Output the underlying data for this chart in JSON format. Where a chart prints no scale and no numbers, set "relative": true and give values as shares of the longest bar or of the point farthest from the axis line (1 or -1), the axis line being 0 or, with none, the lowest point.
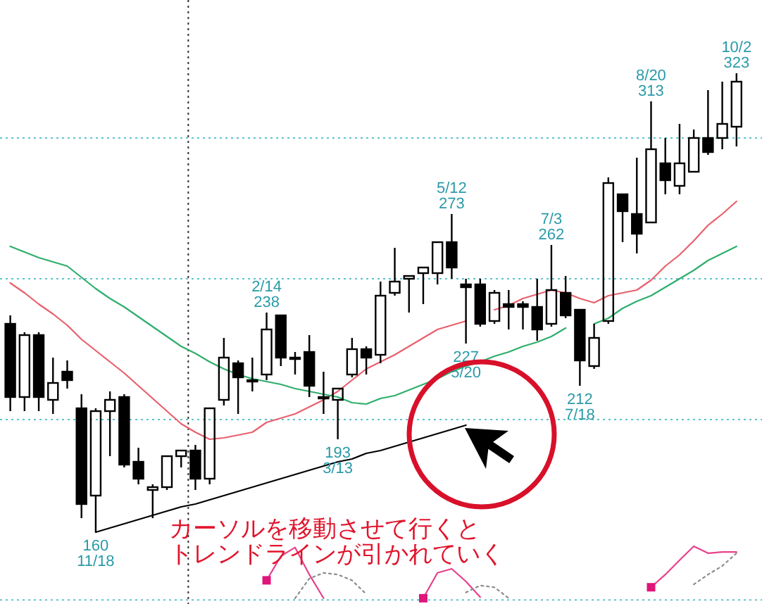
{
  "chart_data": [
    {
      "type": "candlestick",
      "categories": [
        null,
        null,
        null,
        null,
        null,
        null,
        null,
        null,
        null,
        null,
        null,
        null,
        null,
        null,
        null,
        null,
        null,
        null,
        null,
        null,
        null,
        null,
        null,
        null,
        null,
        null,
        null,
        null,
        null,
        null,
        null,
        null,
        null,
        null,
        null,
        null,
        null,
        null,
        null,
        null,
        null,
        null,
        null,
        null,
        null,
        null,
        null,
        null,
        null,
        null,
        null,
        null
      ],
      "ohlc": [
        [
          234,
          237,
          203,
          208
        ],
        [
          208,
          231,
          203,
          230
        ],
        [
          230,
          231,
          203,
          208
        ],
        [
          207,
          222,
          202,
          213
        ],
        [
          217,
          221,
          211,
          214
        ],
        [
          204,
          209,
          165,
          170
        ],
        [
          173,
          204,
          160,
          203
        ],
        [
          203,
          210,
          187,
          207
        ],
        [
          208,
          209,
          183,
          184
        ],
        [
          185,
          190,
          177,
          179
        ],
        [
          175,
          177,
          165,
          176
        ],
        [
          176,
          187,
          175,
          187
        ],
        [
          187,
          189,
          183,
          189
        ],
        [
          189,
          191,
          175,
          179
        ],
        [
          179,
          204,
          177,
          204
        ],
        [
          207,
          229,
          205,
          222
        ],
        [
          220,
          221,
          202,
          215
        ],
        [
          214,
          222,
          210,
          214
        ],
        [
          216,
          238,
          214,
          232
        ],
        [
          237,
          237,
          219,
          222
        ],
        [
          222,
          224,
          216,
          222
        ],
        [
          224,
          230,
          208,
          212
        ],
        [
          208,
          217,
          202,
          208
        ],
        [
          207,
          211,
          193,
          211
        ],
        [
          216,
          229,
          215,
          225
        ],
        [
          225,
          226,
          216,
          222
        ],
        [
          223,
          249,
          220,
          244
        ],
        [
          245,
          261,
          244,
          249
        ],
        [
          250,
          251,
          238,
          251
        ],
        [
          252,
          254,
          241,
          254
        ],
        [
          252,
          263,
          248,
          263
        ],
        [
          263,
          273,
          250,
          254
        ],
        [
          248,
          250,
          227,
          247
        ],
        [
          248,
          250,
          233,
          234
        ],
        [
          235,
          246,
          234,
          245
        ],
        [
          241,
          246,
          232,
          240
        ],
        [
          241,
          242,
          232,
          240
        ],
        [
          240,
          250,
          228,
          232
        ],
        [
          234,
          262,
          233,
          246
        ],
        [
          245,
          251,
          236,
          237
        ],
        [
          239,
          239,
          212,
          221
        ],
        [
          219,
          234,
          218,
          229
        ],
        [
          235,
          286,
          234,
          284
        ],
        [
          280,
          280,
          263,
          274
        ],
        [
          273,
          293,
          259,
          266
        ],
        [
          270,
          313,
          270,
          296
        ],
        [
          291,
          300,
          280,
          285
        ],
        [
          283,
          305,
          280,
          291
        ],
        [
          288,
          303,
          288,
          300
        ],
        [
          300,
          317,
          294,
          295
        ],
        [
          300,
          320,
          296,
          305
        ],
        [
          304,
          323,
          297,
          320
        ]
      ],
      "series": [
        {
          "type": "line",
          "color": "#e8606e",
          "values": [
            248.5,
            245,
            241,
            237.5,
            233.5,
            228.5,
            224.5,
            220.5,
            216.5,
            212,
            207.5,
            203,
            198.5,
            195.5,
            193,
            193.5,
            194.5,
            195.5,
            199,
            200.5,
            202,
            204.5,
            207,
            210,
            214,
            218,
            220.5,
            223,
            226,
            229,
            232,
            233.5,
            235,
            null,
            239,
            240.5,
            243,
            244.5,
            246,
            245,
            243,
            241.5,
            244,
            245,
            246,
            249.5,
            254.5,
            258.5,
            263.5,
            269,
            273,
            277.5
          ]
        },
        {
          "type": "line",
          "color": "#2fae6c",
          "values": [
            261.5,
            259.5,
            257.5,
            256,
            254.5,
            250.5,
            246.5,
            243,
            240,
            236.5,
            233,
            229.5,
            226,
            223.5,
            220.5,
            218,
            216,
            214.5,
            213.5,
            212.5,
            211,
            210,
            209,
            208,
            206,
            205.5,
            207.5,
            208.5,
            210.5,
            212.5,
            214.5,
            217,
            219,
            220.5,
            222.5,
            224,
            226,
            227.5,
            229.5,
            232.5,
            null,
            234,
            236,
            239.5,
            242,
            244,
            247,
            250,
            253,
            256.5,
            259,
            261.5
          ]
        },
        {
          "type": "line",
          "color": "#000000",
          "values": [
            null,
            null,
            null,
            null,
            null,
            null,
            160,
            161.5,
            163,
            164.5,
            166,
            167.5,
            169,
            170,
            171.5,
            173,
            174.5,
            176,
            177.5,
            179,
            180.5,
            182,
            183.5,
            185,
            186,
            188,
            189,
            190.5,
            192,
            193.5,
            195,
            196.5,
            198,
            null,
            null,
            null,
            null,
            null,
            null,
            null,
            null,
            null,
            null,
            null,
            null,
            null,
            null,
            null,
            null,
            null,
            null,
            null
          ]
        }
      ],
      "ylim": [
        134.5,
        349
      ],
      "yticks": [
        {
          "value": 200,
          "label": null
        },
        {
          "value": 250,
          "label": null
        },
        {
          "value": 300,
          "label": null
        }
      ],
      "grid": "y",
      "annotations": [
        {
          "text": "160\n11/18",
          "y": 160
        },
        {
          "text": "2/14\n238",
          "y": 238
        },
        {
          "text": "193\n3/13",
          "y": 193
        },
        {
          "text": "5/12\n273",
          "y": 273
        },
        {
          "text": "227\n5/20",
          "y": 227
        },
        {
          "text": "7/3\n262",
          "y": 262
        },
        {
          "text": "212\n7/18",
          "y": 212
        },
        {
          "text": "8/20\n313",
          "y": 313
        },
        {
          "text": "10/2\n323",
          "y": 323
        },
        "カーソルを移動させて行くと",
        "トレンドラインが引かれていく"
      ]
    },
    {
      "type": "line",
      "relative": true,
      "categories": [
        null,
        null,
        null,
        null,
        null,
        null,
        null,
        null,
        null,
        null,
        null,
        null,
        null,
        null,
        null,
        null,
        null,
        null,
        null,
        null,
        null,
        null,
        null,
        null,
        null,
        null,
        null,
        null,
        null,
        null,
        null,
        null,
        null,
        null,
        null,
        null,
        null,
        null,
        null,
        null,
        null,
        null,
        null,
        null,
        null,
        null,
        null,
        null,
        null,
        null,
        null,
        null
      ],
      "series": [
        {
          "color": "#e8408c",
          "values": [
            null,
            null,
            null,
            null,
            null,
            null,
            null,
            null,
            null,
            null,
            null,
            null,
            null,
            null,
            null,
            null,
            null,
            null,
            0.41,
            0.83,
            0.98,
            0.51,
            0.1,
            null,
            null,
            null,
            null,
            null,
            null,
            0.1,
            0.54,
            0.61,
            0.39,
            0.12,
            null,
            null,
            null,
            null,
            null,
            null,
            null,
            null,
            null,
            null,
            null,
            0.29,
            0.51,
            0.76,
            1,
            0.88,
            0.9,
            0.9
          ]
        },
        {
          "color": "#8c8c8c",
          "line_style": "dotted",
          "values": [
            null,
            null,
            null,
            null,
            null,
            null,
            null,
            null,
            null,
            null,
            null,
            null,
            null,
            null,
            null,
            null,
            null,
            null,
            null,
            null,
            0.1,
            0.44,
            0.54,
            0.51,
            0.41,
            0.17,
            null,
            null,
            null,
            null,
            null,
            null,
            0.2,
            0.32,
            0.29,
            0.1,
            null,
            null,
            null,
            null,
            null,
            null,
            null,
            null,
            null,
            null,
            null,
            null,
            0.34,
            0.51,
            0.66,
            0.88
          ]
        },
        {
          "type": "scatter",
          "marker": "square",
          "color": "#e0157a",
          "values": [
            null,
            null,
            null,
            null,
            null,
            null,
            null,
            null,
            null,
            null,
            null,
            null,
            null,
            null,
            null,
            null,
            null,
            null,
            0.41,
            null,
            null,
            null,
            null,
            null,
            null,
            null,
            null,
            null,
            null,
            0.1,
            null,
            null,
            null,
            null,
            null,
            null,
            null,
            null,
            null,
            null,
            null,
            null,
            null,
            null,
            null,
            0.29,
            null,
            null,
            null,
            null,
            null,
            null
          ]
        }
      ],
      "ref_lines": [
        {
          "axis": "y",
          "value": 0.07,
          "color": "#5cc4cc",
          "line_style": "dotted"
        }
      ]
    }
  ]
}
